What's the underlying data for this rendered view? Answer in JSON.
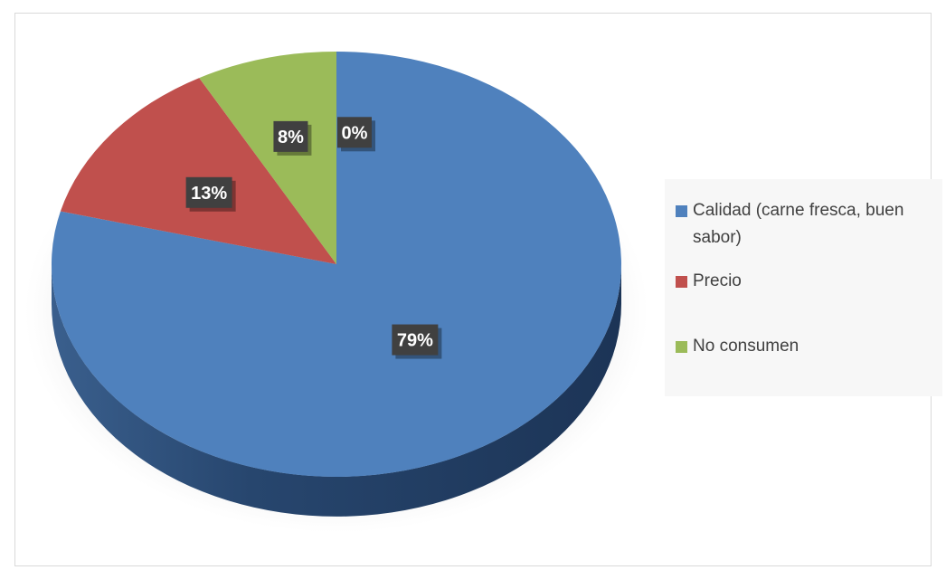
{
  "chart_data": {
    "type": "pie",
    "title": "",
    "categories": [
      "Calidad (carne fresca, buen sabor)",
      "Precio",
      "No consumen",
      ""
    ],
    "values": [
      79,
      13,
      8,
      0
    ],
    "labels": [
      "79%",
      "13%",
      "8%",
      "0%"
    ],
    "colors": [
      "#4f81bd",
      "#c0504d",
      "#9bbb59",
      "#8064a2"
    ],
    "legend": [
      {
        "label": "Calidad (carne fresca, buen sabor)",
        "color": "#4f81bd"
      },
      {
        "label": "Precio",
        "color": "#c0504d"
      },
      {
        "label": "No consumen",
        "color": "#9bbb59"
      }
    ],
    "legend_position": "right",
    "style": "3d"
  }
}
